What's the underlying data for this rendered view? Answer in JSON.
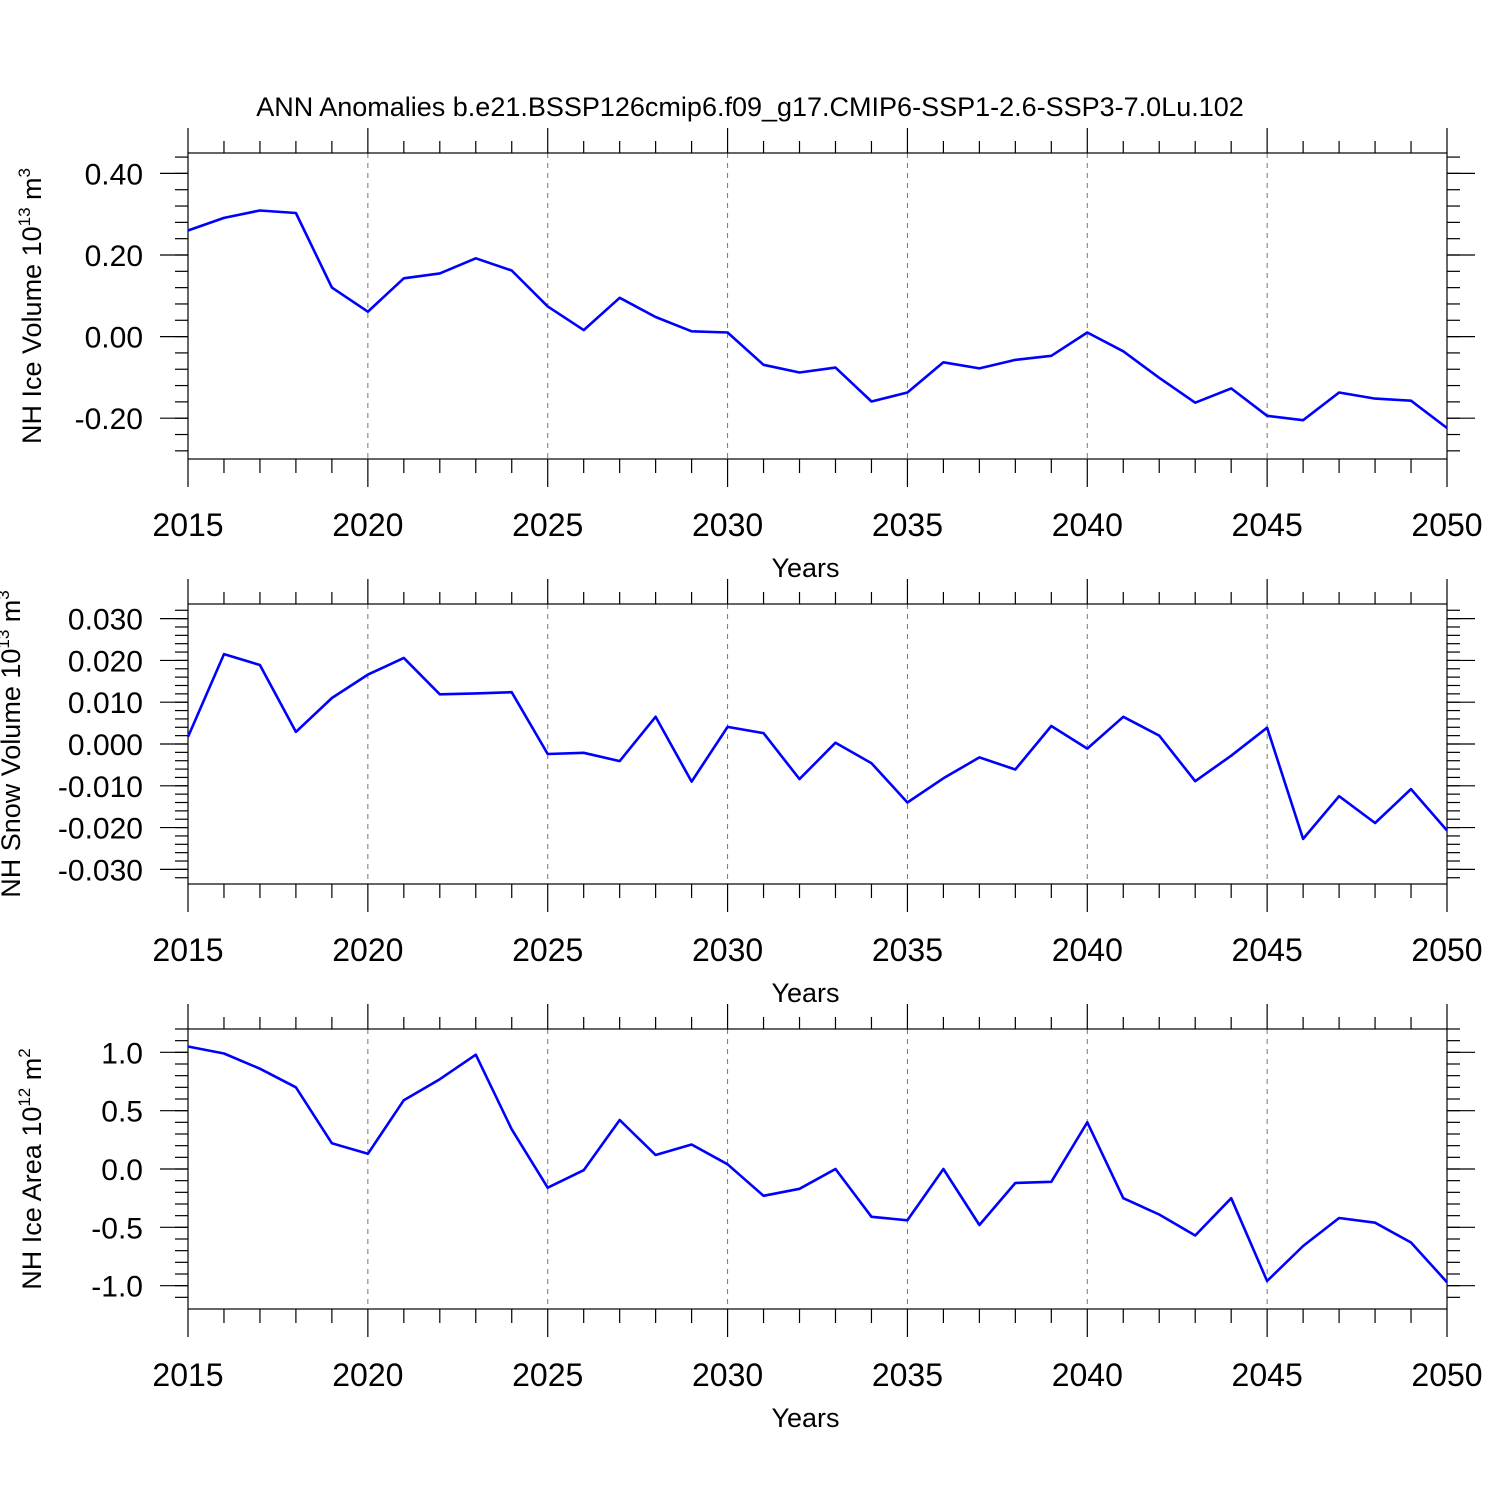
{
  "title": "ANN Anomalies b.e21.BSSP126cmip6.f09_g17.CMIP6-SSP1-2.6-SSP3-7.0Lu.102",
  "colors": {
    "line": "#0000ff",
    "axis": "#000000",
    "grid": "#777777"
  },
  "chart_data": [
    {
      "type": "line",
      "ylabel": "NH Ice Volume 10",
      "ylabel_exp": "13",
      "ylabel_unit": " m",
      "ylabel_unit_exp": "3",
      "xlabel": "Years",
      "xlim": [
        2015,
        2050
      ],
      "ylim": [
        -0.3,
        0.45
      ],
      "xticks": [
        2015,
        2020,
        2025,
        2030,
        2035,
        2040,
        2045,
        2050
      ],
      "xtick_labels": [
        "2015",
        "2020",
        "2025",
        "2030",
        "2035",
        "2040",
        "2045",
        "2050"
      ],
      "xminor": [
        2016,
        2017,
        2018,
        2019,
        2021,
        2022,
        2023,
        2024,
        2026,
        2027,
        2028,
        2029,
        2031,
        2032,
        2033,
        2034,
        2036,
        2037,
        2038,
        2039,
        2041,
        2042,
        2043,
        2044,
        2046,
        2047,
        2048,
        2049
      ],
      "yticks": [
        0.4,
        0.2,
        0.0,
        -0.2
      ],
      "ytick_labels": [
        "0.40",
        "0.20",
        "0.00",
        "-0.20"
      ],
      "yminor_step": 0.04,
      "grid_x": [
        2020,
        2025,
        2030,
        2035,
        2040,
        2045
      ],
      "x": [
        2015,
        2016,
        2017,
        2018,
        2019,
        2020,
        2021,
        2022,
        2023,
        2024,
        2025,
        2026,
        2027,
        2028,
        2029,
        2030,
        2031,
        2032,
        2033,
        2034,
        2035,
        2036,
        2037,
        2038,
        2039,
        2040,
        2041,
        2042,
        2043,
        2044,
        2045,
        2046,
        2047,
        2048,
        2049,
        2050
      ],
      "y": [
        0.26,
        0.291,
        0.309,
        0.303,
        0.12,
        0.061,
        0.143,
        0.155,
        0.192,
        0.162,
        0.074,
        0.016,
        0.095,
        0.048,
        0.013,
        0.01,
        -0.069,
        -0.088,
        -0.076,
        -0.159,
        -0.137,
        -0.063,
        -0.078,
        -0.057,
        -0.047,
        0.01,
        -0.036,
        -0.101,
        -0.162,
        -0.127,
        -0.194,
        -0.205,
        -0.137,
        -0.152,
        -0.157,
        -0.224
      ]
    },
    {
      "type": "line",
      "ylabel": "NH Snow Volume 10",
      "ylabel_exp": "13",
      "ylabel_unit": " m",
      "ylabel_unit_exp": "3",
      "xlabel": "Years",
      "xlim": [
        2015,
        2050
      ],
      "ylim": [
        -0.0335,
        0.0335
      ],
      "xticks": [
        2015,
        2020,
        2025,
        2030,
        2035,
        2040,
        2045,
        2050
      ],
      "xtick_labels": [
        "2015",
        "2020",
        "2025",
        "2030",
        "2035",
        "2040",
        "2045",
        "2050"
      ],
      "xminor": [
        2016,
        2017,
        2018,
        2019,
        2021,
        2022,
        2023,
        2024,
        2026,
        2027,
        2028,
        2029,
        2031,
        2032,
        2033,
        2034,
        2036,
        2037,
        2038,
        2039,
        2041,
        2042,
        2043,
        2044,
        2046,
        2047,
        2048,
        2049
      ],
      "yticks": [
        0.03,
        0.02,
        0.01,
        0.0,
        -0.01,
        -0.02,
        -0.03
      ],
      "ytick_labels": [
        "0.030",
        "0.020",
        "0.010",
        "0.000",
        "-0.010",
        "-0.020",
        "-0.030"
      ],
      "yminor_step": 0.002,
      "grid_x": [
        2020,
        2025,
        2030,
        2035,
        2040,
        2045
      ],
      "x": [
        2015,
        2016,
        2017,
        2018,
        2019,
        2020,
        2021,
        2022,
        2023,
        2024,
        2025,
        2026,
        2027,
        2028,
        2029,
        2030,
        2031,
        2032,
        2033,
        2034,
        2035,
        2036,
        2037,
        2038,
        2039,
        2040,
        2041,
        2042,
        2043,
        2044,
        2045,
        2046,
        2047,
        2048,
        2049,
        2050
      ],
      "y": [
        0.0017,
        0.0215,
        0.0189,
        0.0029,
        0.011,
        0.0166,
        0.0206,
        0.0119,
        0.0121,
        0.0124,
        -0.0024,
        -0.0021,
        -0.0041,
        0.0065,
        -0.009,
        0.0041,
        0.0026,
        -0.0084,
        0.0003,
        -0.0046,
        -0.014,
        -0.0082,
        -0.0032,
        -0.0061,
        0.0043,
        -0.0011,
        0.0065,
        0.002,
        -0.0089,
        -0.0028,
        0.0039,
        -0.0227,
        -0.0125,
        -0.0189,
        -0.0108,
        -0.0207
      ]
    },
    {
      "type": "line",
      "ylabel": "NH Ice Area 10",
      "ylabel_exp": "12",
      "ylabel_unit": " m",
      "ylabel_unit_exp": "2",
      "xlabel": "Years",
      "xlim": [
        2015,
        2050
      ],
      "ylim": [
        -1.2,
        1.2
      ],
      "xticks": [
        2015,
        2020,
        2025,
        2030,
        2035,
        2040,
        2045,
        2050
      ],
      "xtick_labels": [
        "2015",
        "2020",
        "2025",
        "2030",
        "2035",
        "2040",
        "2045",
        "2050"
      ],
      "xminor": [
        2016,
        2017,
        2018,
        2019,
        2021,
        2022,
        2023,
        2024,
        2026,
        2027,
        2028,
        2029,
        2031,
        2032,
        2033,
        2034,
        2036,
        2037,
        2038,
        2039,
        2041,
        2042,
        2043,
        2044,
        2046,
        2047,
        2048,
        2049
      ],
      "yticks": [
        1.0,
        0.5,
        0.0,
        -0.5,
        -1.0
      ],
      "ytick_labels": [
        "1.0",
        "0.5",
        "0.0",
        "-0.5",
        "-1.0"
      ],
      "yminor_step": 0.1,
      "grid_x": [
        2020,
        2025,
        2030,
        2035,
        2040,
        2045
      ],
      "x": [
        2015,
        2016,
        2017,
        2018,
        2019,
        2020,
        2021,
        2022,
        2023,
        2024,
        2025,
        2026,
        2027,
        2028,
        2029,
        2030,
        2031,
        2032,
        2033,
        2034,
        2035,
        2036,
        2037,
        2038,
        2039,
        2040,
        2041,
        2042,
        2043,
        2044,
        2045,
        2046,
        2047,
        2048,
        2049,
        2050
      ],
      "y": [
        1.05,
        0.99,
        0.86,
        0.7,
        0.22,
        0.13,
        0.59,
        0.77,
        0.98,
        0.34,
        -0.16,
        -0.01,
        0.42,
        0.12,
        0.21,
        0.04,
        -0.23,
        -0.17,
        0.0,
        -0.41,
        -0.44,
        0.0,
        -0.48,
        -0.12,
        -0.11,
        0.4,
        -0.25,
        -0.39,
        -0.57,
        -0.25,
        -0.96,
        -0.66,
        -0.42,
        -0.46,
        -0.63,
        -0.97
      ]
    }
  ]
}
